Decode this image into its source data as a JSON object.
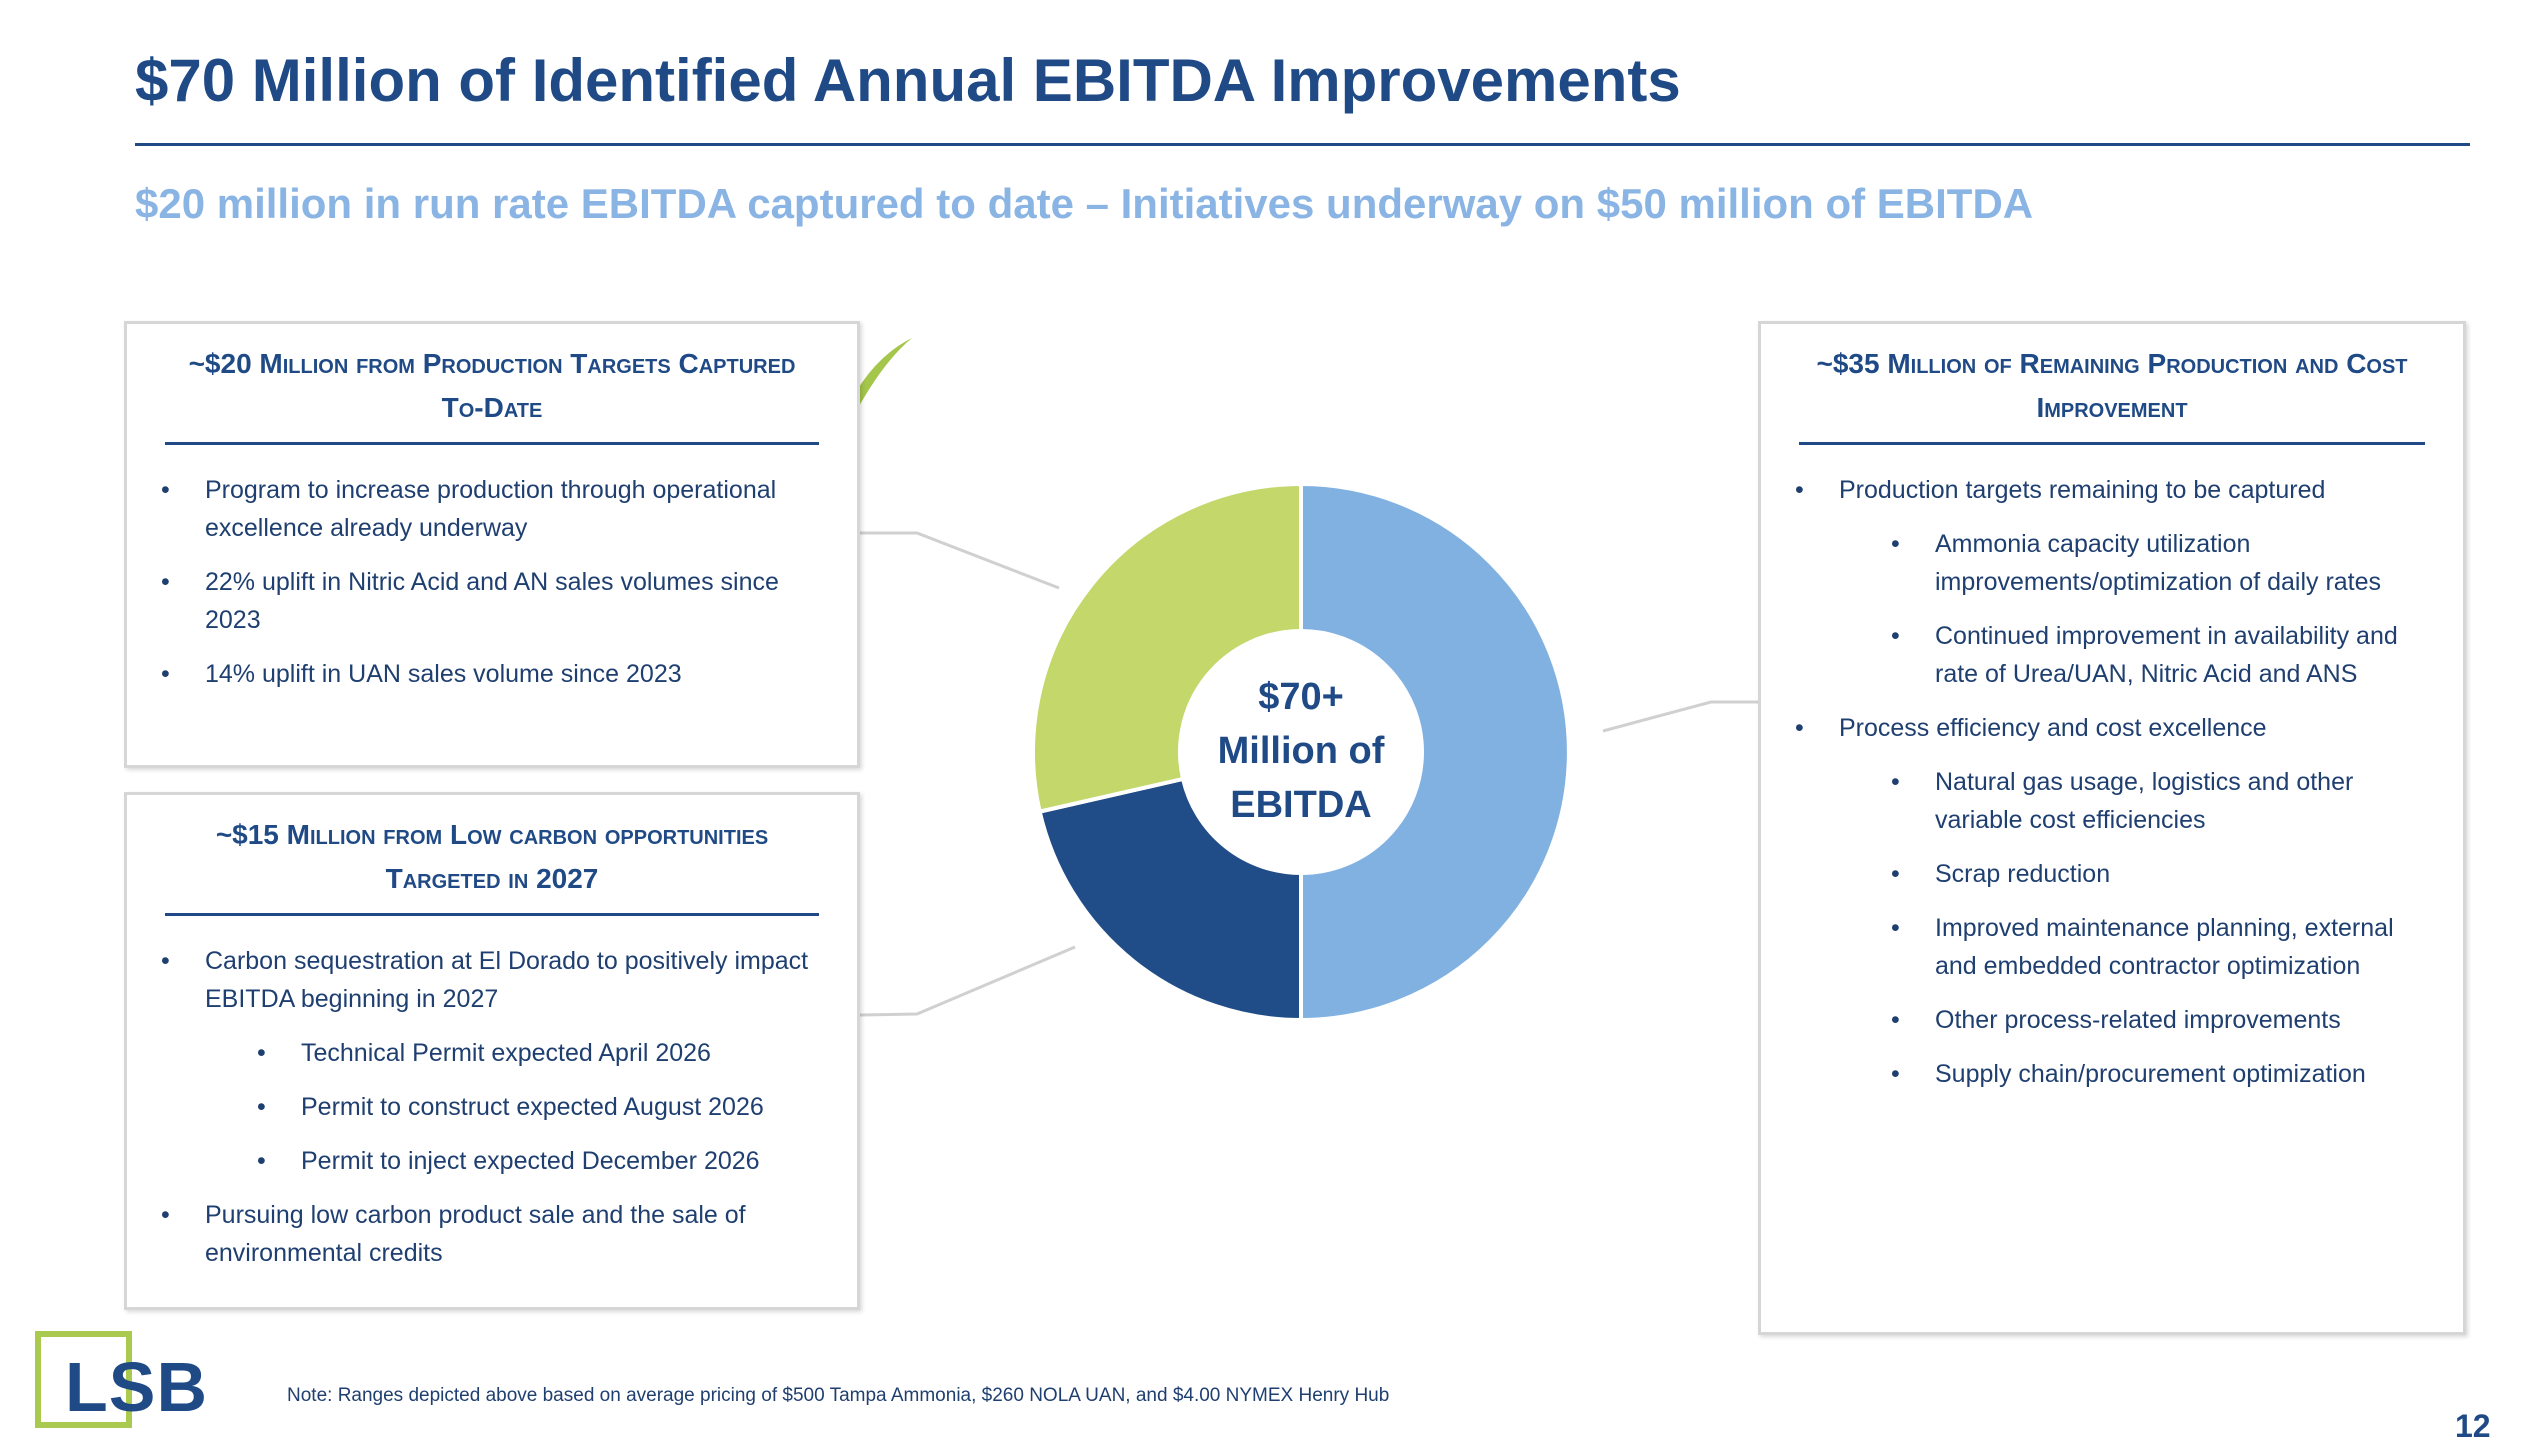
{
  "header": {
    "title": "$70 Million of Identified Annual EBITDA Improvements",
    "subtitle": "$20 million in run rate EBITDA captured to date – Initiatives underway on $50 million of EBITDA"
  },
  "boxes": [
    {
      "heading": "~$20 Million from Production Targets Captured To-Date",
      "items": [
        {
          "text": "Program to increase production through operational excellence already underway"
        },
        {
          "text": "22% uplift in Nitric Acid and AN sales volumes since 2023"
        },
        {
          "text": "14% uplift in UAN sales volume since 2023"
        }
      ]
    },
    {
      "heading": "~$15 Million from Low carbon opportunities Targeted in 2027",
      "items": [
        {
          "text": "Carbon sequestration at El Dorado to positively impact EBITDA beginning in 2027",
          "subitems": [
            "Technical Permit expected April 2026",
            "Permit to construct expected August 2026",
            "Permit to inject expected December 2026"
          ]
        },
        {
          "text": "Pursuing low carbon product sale and the sale of environmental credits"
        }
      ]
    },
    {
      "heading": "~$35 Million of Remaining Production and Cost Improvement",
      "items": [
        {
          "text": "Production targets remaining to be captured",
          "subitems": [
            "Ammonia capacity utilization improvements/optimization of daily rates",
            "Continued improvement in availability and rate of Urea/UAN, Nitric Acid and ANS"
          ]
        },
        {
          "text": "Process efficiency and cost excellence",
          "subitems": [
            "Natural gas usage, logistics and other variable cost efficiencies",
            "Scrap reduction",
            "Improved maintenance planning, external and embedded contractor optimization",
            "Other process-related improvements",
            "Supply chain/procurement optimization"
          ]
        }
      ]
    }
  ],
  "chart_data": {
    "type": "pie",
    "values": [
      35,
      15,
      20
    ],
    "colors": [
      "#80b1e1",
      "#204c88",
      "#c3d76b"
    ],
    "center_label": [
      "$70+",
      "Million of",
      "EBITDA"
    ]
  },
  "footer": {
    "logo": "LSB",
    "note": "Note: Ranges depicted above based on average pricing of $500 Tampa Ammonia, $260 NOLA UAN, and $4.00 NYMEX Henry Hub",
    "page": "12"
  }
}
